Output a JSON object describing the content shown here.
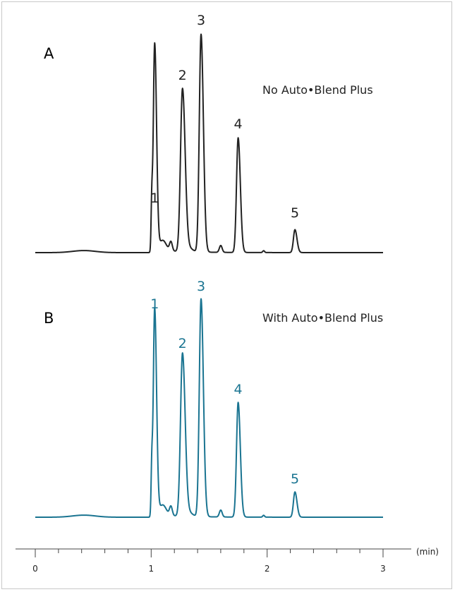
{
  "chart_data": [
    {
      "type": "line",
      "panel_label": "A",
      "condition": "No Auto•Blend Plus",
      "color": "#222222",
      "peaks": [
        {
          "label": "1",
          "rt": 1.03,
          "height": 0.9
        },
        {
          "label": "2",
          "rt": 1.27,
          "height": 0.71
        },
        {
          "label": "3",
          "rt": 1.43,
          "height": 0.95
        },
        {
          "label": "4",
          "rt": 1.75,
          "height": 0.5
        },
        {
          "label": "5",
          "rt": 2.24,
          "height": 0.1
        }
      ]
    },
    {
      "type": "line",
      "panel_label": "B",
      "condition": "With Auto•Blend Plus",
      "color": "#1a7491",
      "peaks": [
        {
          "label": "1",
          "rt": 1.03,
          "height": 0.9
        },
        {
          "label": "2",
          "rt": 1.27,
          "height": 0.71
        },
        {
          "label": "3",
          "rt": 1.43,
          "height": 0.95
        },
        {
          "label": "4",
          "rt": 1.75,
          "height": 0.5
        },
        {
          "label": "5",
          "rt": 2.24,
          "height": 0.11
        }
      ]
    }
  ],
  "x_axis": {
    "unit": "(min)",
    "range": [
      0,
      3
    ],
    "ticks": [
      "0",
      "1",
      "2",
      "3"
    ]
  }
}
